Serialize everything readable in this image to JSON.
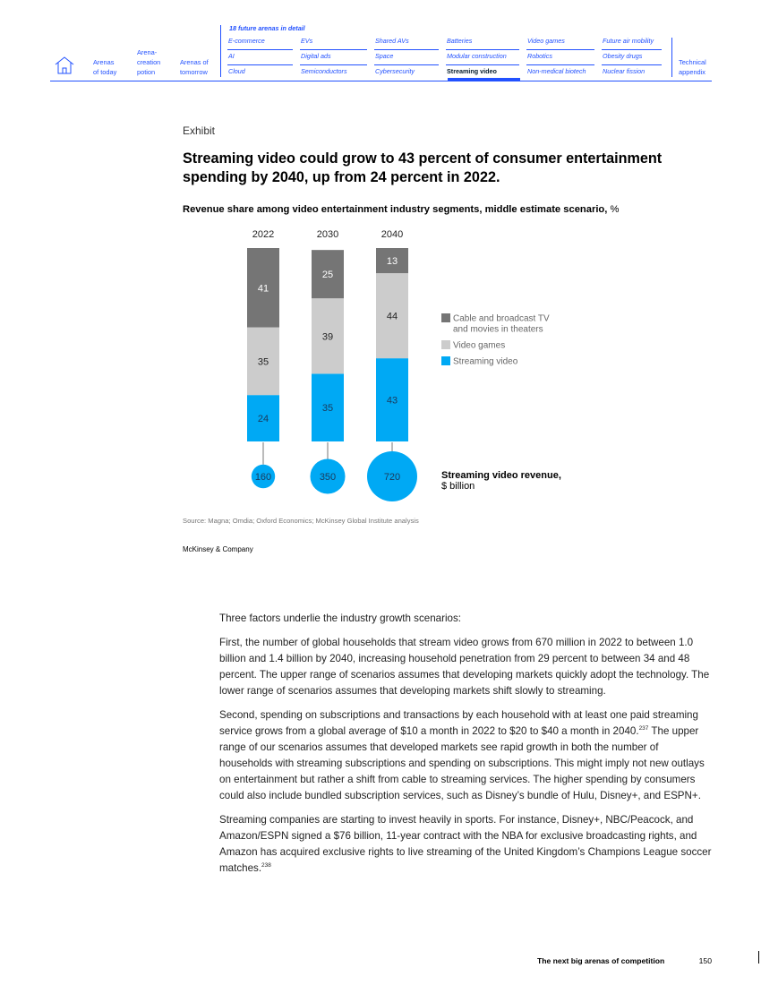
{
  "nav": {
    "home_icon": "home-icon",
    "left_links": [
      "Arenas\nof today",
      "Arena-\ncreation\npotion",
      "Arenas of\ntomorrow"
    ],
    "arenas_heading": "18 future arenas in detail",
    "arenas": [
      [
        "E-commerce",
        "EVs",
        "Shared AVs",
        "Batteries",
        "Video games",
        "Future air mobility"
      ],
      [
        "AI",
        "Digital ads",
        "Space",
        "Modular construction",
        "Robotics",
        "Obesity drugs"
      ],
      [
        "Cloud",
        "Semiconductors",
        "Cybersecurity",
        "Streaming video",
        "Non-medical biotech",
        "Nuclear fission"
      ]
    ],
    "active_arena": "Streaming video",
    "right_link": "Technical\nappendix"
  },
  "exhibit": {
    "label": "Exhibit",
    "title": "Streaming video could grow to 43 percent of consumer entertainment spending by 2040, up from 24 percent in 2022.",
    "subtitle_bold": "Revenue share among video entertainment industry segments, middle estimate scenario,",
    "subtitle_unit": " %",
    "source": "Source: Magna; Omdia; Oxford Economics; McKinsey Global Institute analysis",
    "brand": "McKinsey & Company"
  },
  "chart_data": {
    "type": "bar",
    "stacked": true,
    "categories": [
      "2022",
      "2030",
      "2040"
    ],
    "series": [
      {
        "name": "Streaming video",
        "values": [
          24,
          35,
          43
        ],
        "color": "#00a9f4"
      },
      {
        "name": "Video games",
        "values": [
          35,
          39,
          44
        ],
        "color": "#cccccc"
      },
      {
        "name": "Cable and broadcast TV and movies in theaters",
        "values": [
          41,
          25,
          13
        ],
        "color": "#757575"
      }
    ],
    "legend": [
      {
        "label_lines": [
          "Cable and broadcast TV",
          "and movies in theaters"
        ],
        "color": "#757575"
      },
      {
        "label_lines": [
          "Video games"
        ],
        "color": "#cccccc"
      },
      {
        "label_lines": [
          "Streaming video"
        ],
        "color": "#00a9f4"
      }
    ],
    "legend_position": "right",
    "ylim": [
      0,
      100
    ],
    "bubbles": {
      "label": "Streaming video revenue,",
      "unit": "$ billion",
      "values": [
        160,
        350,
        720
      ],
      "color": "#00a9f4"
    }
  },
  "body": {
    "p1": "Three factors underlie the industry growth scenarios:",
    "p2": "First, the number of global households that stream video grows from 670 million in 2022 to between 1.0 billion and 1.4 billion by 2040, increasing household penetration from 29 percent to between 34 and 48 percent. The upper range of scenarios assumes that developing markets quickly adopt the technology. The lower range of scenarios assumes that developing markets shift slowly to streaming.",
    "p3a": "Second, spending on subscriptions and transactions by each household with at least one paid streaming service grows from a global average of $10 a month in 2022 to $20 to $40 a month in 2040.",
    "p3_note": "237",
    "p3b": " The upper range of our scenarios assumes that developed markets see rapid growth in both the number of households with streaming subscriptions and spending on subscriptions. This might imply not new outlays on entertainment but rather a shift from cable to streaming services. The higher spending by consumers could also include bundled subscription services, such as Disney’s bundle of Hulu, Disney+, and ESPN+.",
    "p4": "Streaming companies are starting to invest heavily in sports. For instance, Disney+, NBC/Peacock, and Amazon/ESPN signed a $76 billion, 11-year contract with the NBA for exclusive broadcasting rights, and Amazon has acquired exclusive rights to live streaming of the United Kingdom’s Champions League soccer matches.",
    "p4_note": "238"
  },
  "footer": {
    "title": "The next big arenas of competition",
    "page": "150"
  }
}
